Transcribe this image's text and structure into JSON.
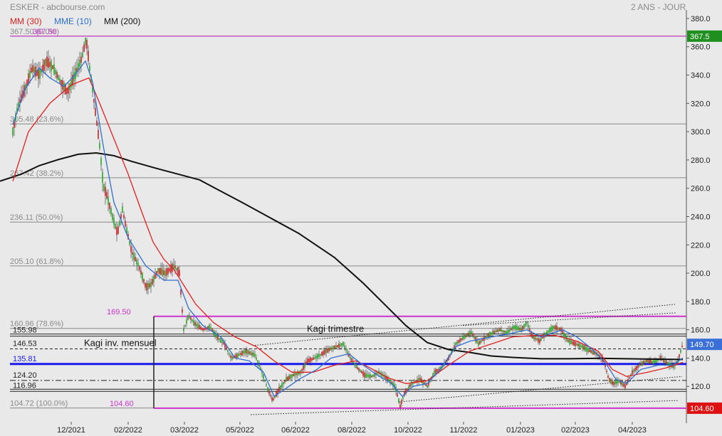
{
  "header": {
    "title": "ESKER - abcbourse.com",
    "period": "2 ANS - JOUR"
  },
  "legend": {
    "mm30": "MM (30)",
    "mme10": "MME (10)",
    "mm200": "MM (200)"
  },
  "colors": {
    "background": "#e9e9e9",
    "candle_up": "#22aa22",
    "candle_down": "#cc2222",
    "mm30": "#e02020",
    "mme10": "#2f6fd0",
    "mm200": "#111111",
    "magenta": "#cc33cc",
    "fib_line": "#888888",
    "blue_line": "#1a1aee",
    "tag_green": "#1f8f1f",
    "tag_blue": "#3a6fd8",
    "tag_red": "#dd1111"
  },
  "chart_data": {
    "type": "candlestick",
    "ylim": [
      97,
      386
    ],
    "y_ticks": [
      "120.0",
      "140.0",
      "160.0",
      "180.0",
      "200.0",
      "220.0",
      "240.0",
      "260.0",
      "280.0",
      "300.0",
      "320.0",
      "340.0",
      "360.0",
      "380.0"
    ],
    "x_ticks": [
      "12/2021",
      "02/2022",
      "03/2022",
      "05/2022",
      "06/2022",
      "08/2022",
      "10/2022",
      "11/2022",
      "01/2023",
      "02/2023",
      "04/2023"
    ],
    "price_tags": [
      {
        "label": "367.5",
        "value": 367.5,
        "color": "tag_green"
      },
      {
        "label": "149.70",
        "value": 149.7,
        "color": "tag_blue"
      },
      {
        "label": "104.60",
        "value": 104.6,
        "color": "tag_red"
      }
    ],
    "fibonacci_levels": [
      {
        "label": "367.50 (0.0%)",
        "value": 367.5
      },
      {
        "label": "305.48 (23.6%)",
        "value": 305.48
      },
      {
        "label": "267.42 (38.2%)",
        "value": 267.42
      },
      {
        "label": "236.11 (50.0%)",
        "value": 236.11
      },
      {
        "label": "205.10 (61.8%)",
        "value": 205.1
      },
      {
        "label": "160.96 (78.6%)",
        "value": 160.96
      },
      {
        "label": "104.72 (100.0%)",
        "value": 104.72
      }
    ],
    "horizontal_levels": [
      {
        "label": "367.50",
        "value": 367.5,
        "style": "magenta-top"
      },
      {
        "label": "169.50",
        "value": 169.5,
        "style": "magenta"
      },
      {
        "label": "104.60",
        "value": 104.6,
        "style": "magenta"
      },
      {
        "label": "155.98",
        "value": 155.98,
        "style": "double"
      },
      {
        "label": "146.53",
        "value": 146.53,
        "style": "dashed"
      },
      {
        "label": "135.81",
        "value": 135.81,
        "style": "blue"
      },
      {
        "label": "124.20",
        "value": 124.2,
        "style": "dashdot"
      },
      {
        "label": "116.96",
        "value": 116.96,
        "style": "double"
      }
    ],
    "annotations": [
      {
        "text": "Kagi trimestre"
      },
      {
        "text": "Kagi inv. mensuel"
      }
    ],
    "ma200_points": [
      [
        0,
        265
      ],
      [
        30,
        270
      ],
      [
        55,
        276
      ],
      [
        80,
        280
      ],
      [
        110,
        284
      ],
      [
        135,
        285
      ],
      [
        160,
        283
      ],
      [
        185,
        279
      ],
      [
        220,
        274
      ],
      [
        250,
        270
      ],
      [
        280,
        266
      ],
      [
        310,
        258
      ],
      [
        340,
        250
      ],
      [
        380,
        239
      ],
      [
        420,
        228
      ],
      [
        470,
        211
      ],
      [
        510,
        193
      ],
      [
        540,
        178
      ],
      [
        570,
        163
      ],
      [
        600,
        151
      ],
      [
        630,
        146
      ],
      [
        660,
        144
      ],
      [
        690,
        141.5
      ],
      [
        720,
        140.5
      ],
      [
        760,
        139.5
      ],
      [
        800,
        139.5
      ],
      [
        840,
        139.8
      ],
      [
        880,
        139.5
      ],
      [
        920,
        139.2
      ],
      [
        959,
        139
      ]
    ],
    "ma30_points": [
      [
        18,
        265
      ],
      [
        40,
        300
      ],
      [
        70,
        320
      ],
      [
        100,
        333
      ],
      [
        125,
        338
      ],
      [
        140,
        320
      ],
      [
        160,
        295
      ],
      [
        180,
        270
      ],
      [
        200,
        242
      ],
      [
        215,
        222
      ],
      [
        230,
        210
      ],
      [
        245,
        202
      ],
      [
        260,
        190
      ],
      [
        275,
        178
      ],
      [
        300,
        165
      ],
      [
        330,
        155
      ],
      [
        360,
        148
      ],
      [
        385,
        138
      ],
      [
        410,
        130
      ],
      [
        440,
        130
      ],
      [
        470,
        135
      ],
      [
        500,
        138
      ],
      [
        520,
        133
      ],
      [
        545,
        126
      ],
      [
        570,
        122
      ],
      [
        600,
        124
      ],
      [
        630,
        135
      ],
      [
        660,
        145
      ],
      [
        690,
        150
      ],
      [
        720,
        155
      ],
      [
        750,
        156
      ],
      [
        780,
        156
      ],
      [
        810,
        152
      ],
      [
        840,
        145
      ],
      [
        860,
        132
      ],
      [
        880,
        127
      ],
      [
        910,
        130
      ],
      [
        935,
        133
      ],
      [
        959,
        137
      ]
    ],
    "mme10_points": [
      [
        18,
        305
      ],
      [
        35,
        330
      ],
      [
        55,
        345
      ],
      [
        70,
        338
      ],
      [
        90,
        332
      ],
      [
        105,
        340
      ],
      [
        120,
        350
      ],
      [
        130,
        335
      ],
      [
        145,
        290
      ],
      [
        160,
        250
      ],
      [
        180,
        225
      ],
      [
        205,
        205
      ],
      [
        230,
        195
      ],
      [
        250,
        195
      ],
      [
        265,
        175
      ],
      [
        285,
        163
      ],
      [
        310,
        155
      ],
      [
        330,
        140
      ],
      [
        350,
        138
      ],
      [
        370,
        130
      ],
      [
        385,
        113
      ],
      [
        400,
        118
      ],
      [
        420,
        125
      ],
      [
        445,
        132
      ],
      [
        465,
        140
      ],
      [
        490,
        143
      ],
      [
        510,
        135
      ],
      [
        530,
        128
      ],
      [
        550,
        122
      ],
      [
        565,
        113
      ],
      [
        580,
        120
      ],
      [
        600,
        122
      ],
      [
        620,
        133
      ],
      [
        640,
        148
      ],
      [
        660,
        152
      ],
      [
        690,
        155
      ],
      [
        715,
        157
      ],
      [
        740,
        160
      ],
      [
        760,
        155
      ],
      [
        790,
        160
      ],
      [
        810,
        155
      ],
      [
        830,
        147
      ],
      [
        850,
        137
      ],
      [
        865,
        125
      ],
      [
        880,
        122
      ],
      [
        900,
        132
      ],
      [
        925,
        135
      ],
      [
        945,
        135
      ],
      [
        959,
        140
      ]
    ],
    "price_path": [
      [
        18,
        300
      ],
      [
        25,
        318
      ],
      [
        35,
        330
      ],
      [
        45,
        345
      ],
      [
        55,
        340
      ],
      [
        65,
        350
      ],
      [
        75,
        345
      ],
      [
        85,
        335
      ],
      [
        95,
        328
      ],
      [
        105,
        340
      ],
      [
        115,
        352
      ],
      [
        121,
        366
      ],
      [
        126,
        345
      ],
      [
        133,
        318
      ],
      [
        140,
        290
      ],
      [
        145,
        262
      ],
      [
        150,
        255
      ],
      [
        158,
        240
      ],
      [
        165,
        228
      ],
      [
        172,
        245
      ],
      [
        178,
        230
      ],
      [
        185,
        215
      ],
      [
        195,
        205
      ],
      [
        205,
        190
      ],
      [
        212,
        192
      ],
      [
        222,
        202
      ],
      [
        232,
        200
      ],
      [
        245,
        205
      ],
      [
        252,
        200
      ],
      [
        258,
        160
      ],
      [
        265,
        170
      ],
      [
        272,
        165
      ],
      [
        285,
        160
      ],
      [
        295,
        162
      ],
      [
        305,
        155
      ],
      [
        315,
        150
      ],
      [
        325,
        140
      ],
      [
        335,
        142
      ],
      [
        345,
        145
      ],
      [
        358,
        142
      ],
      [
        368,
        130
      ],
      [
        376,
        118
      ],
      [
        383,
        110
      ],
      [
        392,
        118
      ],
      [
        402,
        125
      ],
      [
        412,
        128
      ],
      [
        422,
        130
      ],
      [
        432,
        138
      ],
      [
        442,
        140
      ],
      [
        452,
        143
      ],
      [
        462,
        146
      ],
      [
        472,
        148
      ],
      [
        482,
        150
      ],
      [
        492,
        140
      ],
      [
        502,
        133
      ],
      [
        512,
        128
      ],
      [
        522,
        127
      ],
      [
        532,
        130
      ],
      [
        545,
        125
      ],
      [
        555,
        120
      ],
      [
        562,
        106
      ],
      [
        568,
        115
      ],
      [
        578,
        122
      ],
      [
        590,
        125
      ],
      [
        600,
        120
      ],
      [
        610,
        130
      ],
      [
        620,
        133
      ],
      [
        630,
        140
      ],
      [
        640,
        150
      ],
      [
        652,
        155
      ],
      [
        662,
        158
      ],
      [
        672,
        150
      ],
      [
        682,
        155
      ],
      [
        692,
        158
      ],
      [
        702,
        160
      ],
      [
        712,
        158
      ],
      [
        722,
        162
      ],
      [
        732,
        160
      ],
      [
        740,
        165
      ],
      [
        748,
        155
      ],
      [
        758,
        152
      ],
      [
        768,
        158
      ],
      [
        778,
        162
      ],
      [
        788,
        160
      ],
      [
        798,
        152
      ],
      [
        808,
        150
      ],
      [
        818,
        148
      ],
      [
        828,
        145
      ],
      [
        838,
        143
      ],
      [
        848,
        138
      ],
      [
        855,
        125
      ],
      [
        862,
        122
      ],
      [
        870,
        124
      ],
      [
        878,
        120
      ],
      [
        888,
        130
      ],
      [
        898,
        135
      ],
      [
        908,
        138
      ],
      [
        918,
        137
      ],
      [
        928,
        140
      ],
      [
        938,
        136
      ],
      [
        946,
        134
      ],
      [
        952,
        138
      ],
      [
        959,
        150
      ]
    ]
  }
}
